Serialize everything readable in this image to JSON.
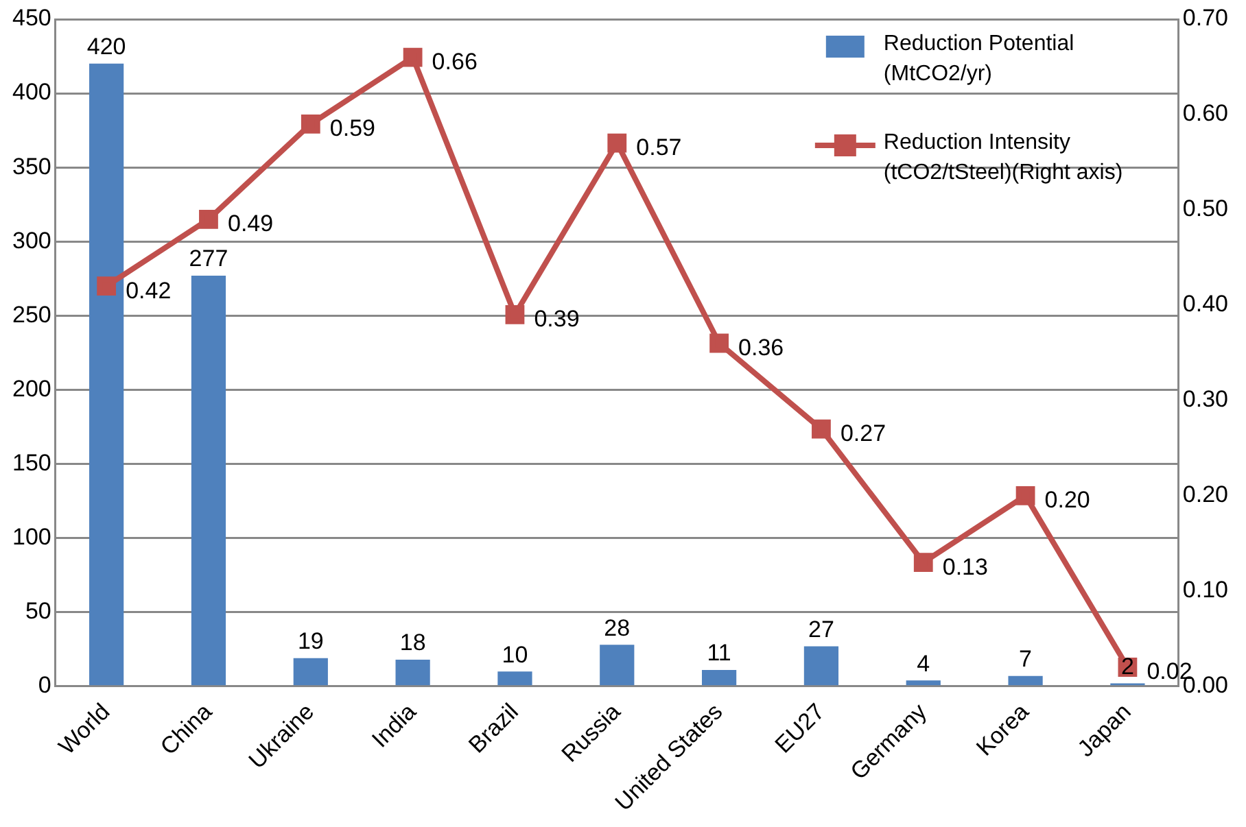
{
  "chart_data": {
    "type": "bar",
    "categories": [
      "World",
      "China",
      "Ukraine",
      "India",
      "Brazil",
      "Russia",
      "United States",
      "EU27",
      "Germany",
      "Korea",
      "Japan"
    ],
    "series": [
      {
        "name": "Reduction Potential (MtCO2/yr)",
        "color": "#4f81bd",
        "values": [
          420,
          277,
          19,
          18,
          10,
          28,
          11,
          27,
          4,
          7,
          2
        ],
        "value_labels": [
          "420",
          "277",
          "19",
          "18",
          "10",
          "28",
          "11",
          "27",
          "4",
          "7",
          "2"
        ]
      },
      {
        "name": "Reduction Intensity (tCO2/tSteel)(Right axis)",
        "type": "line",
        "axis": "y2",
        "color": "#c0504d",
        "marker": "square",
        "values": [
          0.42,
          0.49,
          0.59,
          0.66,
          0.39,
          0.57,
          0.36,
          0.27,
          0.13,
          0.2,
          0.02
        ],
        "value_labels": [
          "0.42",
          "0.49",
          "0.59",
          "0.66",
          "0.39",
          "0.57",
          "0.36",
          "0.27",
          "0.13",
          "0.20",
          "0.02"
        ]
      }
    ],
    "ylim": [
      0,
      450
    ],
    "yticks": [
      0,
      50,
      100,
      150,
      200,
      250,
      300,
      350,
      400,
      450
    ],
    "y2lim": [
      0,
      0.7
    ],
    "y2ticks": [
      {
        "value": 0,
        "label": "0.00"
      },
      {
        "value": 0.1,
        "label": "0.10"
      },
      {
        "value": 0.2,
        "label": "0.20"
      },
      {
        "value": 0.3,
        "label": "0.30"
      },
      {
        "value": 0.4,
        "label": "0.40"
      },
      {
        "value": 0.5,
        "label": "0.50"
      },
      {
        "value": 0.6,
        "label": "0.60"
      },
      {
        "value": 0.7,
        "label": "0.70"
      }
    ],
    "grid": "y",
    "legend": "top right"
  }
}
